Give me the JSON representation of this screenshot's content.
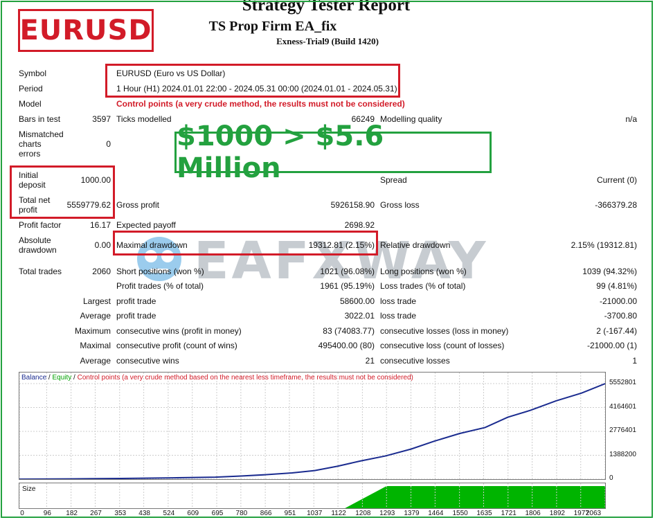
{
  "header": {
    "symbol_badge": "EURUSD",
    "title": "Strategy Tester Report",
    "ea_name": "TS Prop Firm EA_fix",
    "server": "Exness-Trial9 (Build 1420)"
  },
  "headline": "$1000 > $5.6 Million",
  "watermark": "EAFXWAY",
  "report": {
    "symbol_label": "Symbol",
    "symbol_value": "EURUSD (Euro vs US Dollar)",
    "period_label": "Period",
    "period_value": "1 Hour (H1) 2024.01.01 22:00 - 2024.05.31 00:00 (2024.01.01 - 2024.05.31)",
    "model_label": "Model",
    "model_value": "Control points (a very crude method, the results must not be considered)",
    "bars_label": "Bars in test",
    "bars_value": "3597",
    "ticks_label": "Ticks modelled",
    "ticks_value": "66249",
    "quality_label": "Modelling quality",
    "quality_value": "n/a",
    "mismatch_label_1": "Mismatched",
    "mismatch_label_2": "charts",
    "mismatch_label_3": "errors",
    "mismatch_value": "0",
    "deposit_label_1": "Initial",
    "deposit_label_2": "deposit",
    "deposit_value": "1000.00",
    "spread_label": "Spread",
    "spread_value": "Current (0)",
    "netprofit_label_1": "Total net",
    "netprofit_label_2": "profit",
    "netprofit_value": "5559779.62",
    "grossprofit_label": "Gross profit",
    "grossprofit_value": "5926158.90",
    "grossloss_label": "Gross loss",
    "grossloss_value": "-366379.28",
    "pf_label": "Profit factor",
    "pf_value": "16.17",
    "payoff_label": "Expected payoff",
    "payoff_value": "2698.92",
    "absdd_label_1": "Absolute",
    "absdd_label_2": "drawdown",
    "absdd_value": "0.00",
    "maxdd_label": "Maximal drawdown",
    "maxdd_value": "19312.81 (2.15%)",
    "reldd_label": "Relative drawdown",
    "reldd_value": "2.15% (19312.81)",
    "trades_label": "Total trades",
    "trades_value": "2060",
    "short_label": "Short positions (won %)",
    "short_value": "1021 (96.08%)",
    "long_label": "Long positions (won %)",
    "long_value": "1039 (94.32%)",
    "ptrades_label": "Profit trades (% of total)",
    "ptrades_value": "1961 (95.19%)",
    "ltrades_label": "Loss trades (% of total)",
    "ltrades_value": "99 (4.81%)",
    "largest_label": "Largest",
    "largest_p_label": "profit trade",
    "largest_p_value": "58600.00",
    "largest_l_label": "loss trade",
    "largest_l_value": "-21000.00",
    "average_label": "Average",
    "average_p_label": "profit trade",
    "average_p_value": "3022.01",
    "average_l_label": "loss trade",
    "average_l_value": "-3700.80",
    "maximum_label": "Maximum",
    "maxwins_label": "consecutive wins (profit in money)",
    "maxwins_value": "83 (74083.77)",
    "maxlosses_label": "consecutive losses (loss in money)",
    "maxlosses_value": "2 (-167.44)",
    "maximal_label": "Maximal",
    "maxprofit_label": "consecutive profit (count of wins)",
    "maxprofit_value": "495400.00 (80)",
    "maxloss_label": "consecutive loss (count of losses)",
    "maxloss_value": "-21000.00 (1)",
    "avgc_label": "Average",
    "avgwins_label": "consecutive wins",
    "avgwins_value": "21",
    "avglosses_label": "consecutive losses",
    "avglosses_value": "1"
  },
  "chart_legend": {
    "balance": "Balance",
    "sep1": " / ",
    "equity": "Equity",
    "sep2": " / ",
    "note": "Control points (a very crude method based on the nearest less timeframe, the results must not be considered)",
    "size": "Size"
  },
  "colors": {
    "balance": "#1a2b8f",
    "equity": "#00a000",
    "highlight_red": "#d21b28",
    "frame_green": "#23a13f"
  },
  "chart_data": {
    "type": "line",
    "title": "",
    "xlabel": "",
    "ylabel": "",
    "x_ticks": [
      0,
      96,
      182,
      267,
      353,
      438,
      524,
      609,
      695,
      780,
      866,
      951,
      1037,
      1122,
      1208,
      1293,
      1379,
      1464,
      1550,
      1635,
      1721,
      1806,
      1892,
      1977,
      2063
    ],
    "y_ticks": [
      0,
      1388200,
      2776401,
      4164601,
      5552801
    ],
    "ylim": [
      0,
      5552801
    ],
    "xlim": [
      0,
      2063
    ],
    "series": [
      {
        "name": "Balance",
        "x": [
          0,
          180,
          360,
          540,
          690,
          780,
          870,
          960,
          1040,
          1120,
          1200,
          1290,
          1380,
          1460,
          1550,
          1640,
          1720,
          1800,
          1890,
          1980,
          2063
        ],
        "y": [
          1000,
          15000,
          40000,
          75000,
          115000,
          180000,
          260000,
          360000,
          500000,
          750000,
          1050000,
          1350000,
          1750000,
          2200000,
          2650000,
          3000000,
          3600000,
          4000000,
          4550000,
          5000000,
          5552801
        ]
      }
    ],
    "size_panel": {
      "type": "area",
      "start_x": 1293,
      "level": 1.0
    }
  }
}
